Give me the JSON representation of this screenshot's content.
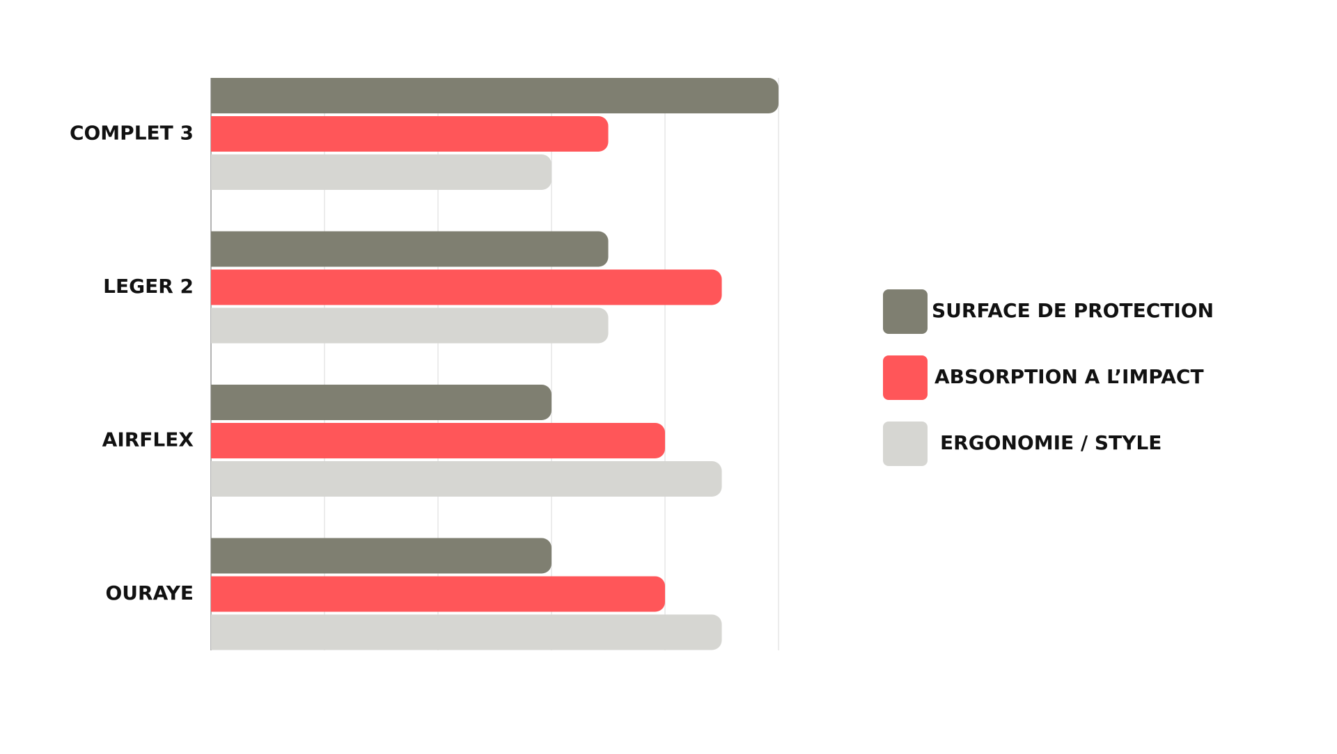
{
  "chart_data": {
    "type": "bar",
    "orientation": "horizontal",
    "categories": [
      "COMPLET 3",
      "LEGER 2",
      "AIRFLEX",
      "OURAYE"
    ],
    "series": [
      {
        "name": "SURFACE DE PROTECTION",
        "color": "#7f7f71",
        "values": [
          5,
          3.5,
          3,
          3
        ]
      },
      {
        "name": "ABSORPTION A L’IMPACT",
        "color": "#ff5659",
        "values": [
          3.5,
          4.5,
          4,
          4
        ]
      },
      {
        "name": "ERGONOMIE / STYLE",
        "color": "#d6d6d2",
        "values": [
          3,
          3.5,
          4.5,
          4.5
        ]
      }
    ],
    "xlim": [
      0,
      5
    ],
    "grid": true,
    "legend_position": "right",
    "title": "",
    "xlabel": "",
    "ylabel": ""
  }
}
